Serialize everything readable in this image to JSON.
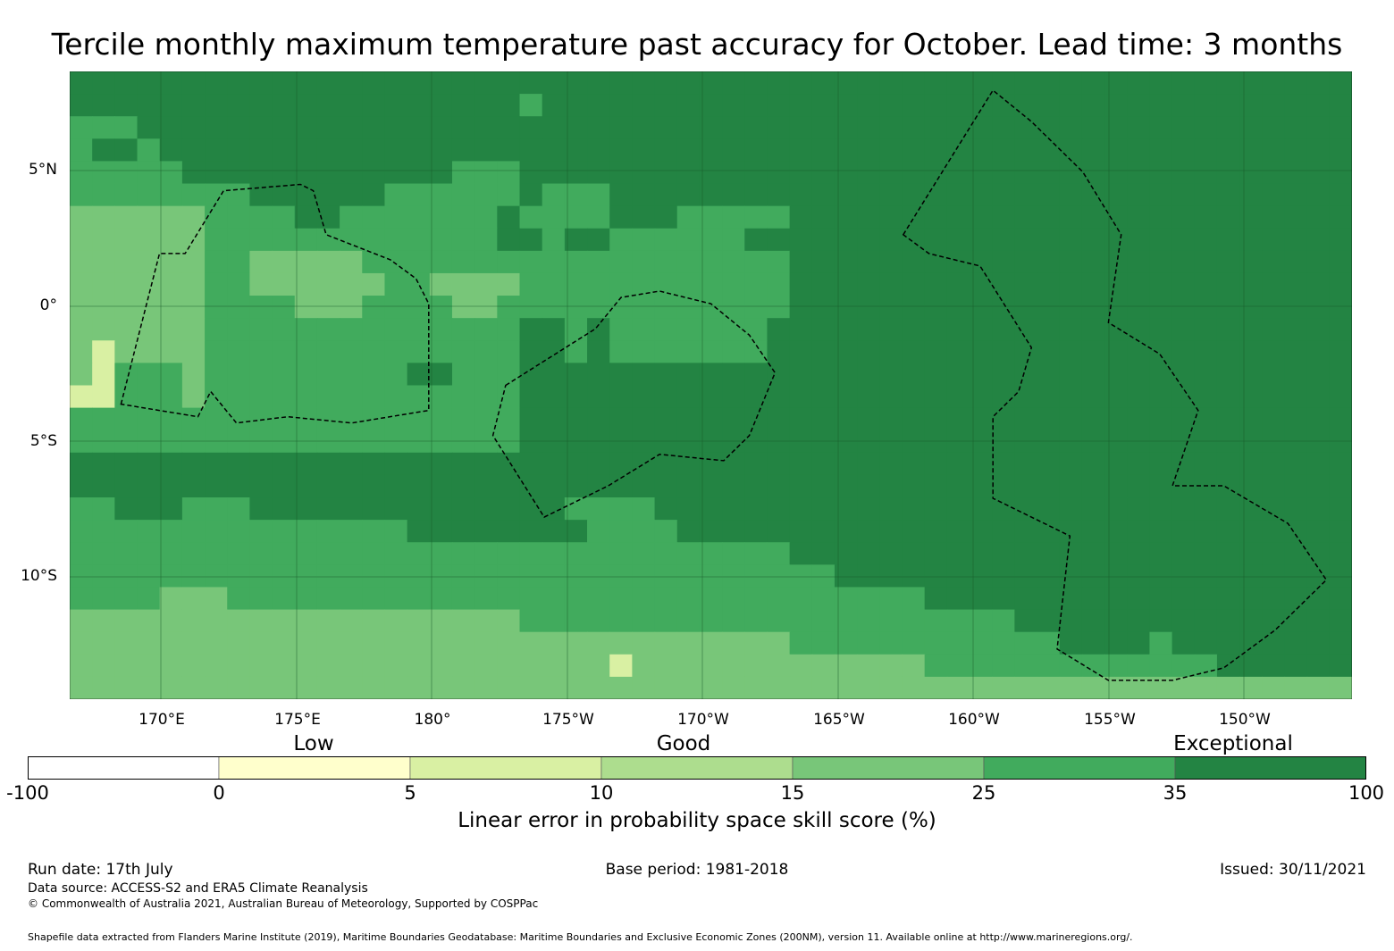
{
  "title": "Tercile monthly maximum temperature past accuracy for October. Lead time: 3 months",
  "map": {
    "lat_labels": [
      "5°N",
      "0°",
      "5°S",
      "10°S"
    ],
    "lon_labels": [
      "170°E",
      "175°E",
      "180°",
      "175°W",
      "170°W",
      "165°W",
      "160°W",
      "155°W",
      "150°W"
    ],
    "grid_cols": 57,
    "grid_rows": 28,
    "grid_rows_data": [
      "DDDDDDDDDDDDDDDDDDDDDDDDDDDDDDDDDDDDDDDDDDDDDDDDDDDDDDDDD",
      "DDDDDDDDDDDDDDDDDDDDCDDDDDDDDDDDDDDDDDDDDDDDDDDDDDDDDDDDD",
      "CCCDDDDDDDDDDDDDDDDDDDDDDDDDDDDDDDDDDDDDDDDDDDDDDDDDDDDDD",
      "CDDCDDDDDDDDDDDDDDDDDDDDDDDDDDDDDDDDDDDDDDDDDDDDDDDDDDDDD",
      "CCCCCDDDDDDDDDDDDCCCDDDDDDDDDDDDDDDDDDDDDDDDDDDDDDDDDDDDD",
      "CCCCCCCCDDDDDDCCCCCCDCCCDDDDDDDDDDDDDDDDDDDDDDDDDDDDDDDDD",
      "BBBBBBCCCCDDCCCCCCCDCCCCDDDCCCCCDDDDDDDDDDDDDDDDDDDDDDDDD",
      "BBBBBBCCCCCCCCCCCCCDDCDDCCCCCCDDDDDDDDDDDDDDDDDDDDDDDDDDD",
      "BBBBBBCCBBBBBCCCCCCCCCCCCCCCCCCCDDDDDDDDDDDDDDDDDDDDDDDDD",
      "BBBBBBCCBBBBBBCCBBBBCCCCCCCCCCCCDDDDDDDDDDDDDDDDDDDDDDDDD",
      "BBBBBBCCCCBBBCCCCBBCCCCCCCCCCCCCDDDDDDDDDDDDDDDDDDDDDDDDD",
      "BBBBBBCCCCCCCCCCCCCCDDCDCCCCCCCDDDDDDDDDDDDDDDDDDDDDDDDDD",
      "BABBBBCCCCCCCCCCCCCCDDCDCCCCCCCDDDDDDDDDDDDDDDDDDDDDDDDDD",
      "BACCCBCCCCCCCCCDDCCCDDDDDDDDDDDDDDDDDDDDDDDDDDDDDDDDDDDDD",
      "AACCCBCCCCCCCCCCCCCCDDDDDDDDDDDDDDDDDDDDDDDDDDDDDDDDDDDDD",
      "CCCCCCCCCCCCCCCCCCCCDDDDDDDDDDDDDDDDDDDDDDDDDDDDDDDDDDDDD",
      "CCCCCCCCCCCCCCCCCCCCDDDDDDDDDDDDDDDDDDDDDDDDDDDDDDDDDDDDD",
      "DDDDDDDDDDDDDDDDDDDDDDDDDDDDDDDDDDDDDDDDDDDDDDDDDDDDDDDDD",
      "DDDDDDDDDDDDDDDDDDDDDDDDDDDDDDDDDDDDDDDDDDDDDDDDDDDDDDDDD",
      "CCDDDCCCDDDDDDDDDDDDDDCCCCDDDDDDDDDDDDDDDDDDDDDDDDDDDDDDD",
      "CCCCCCCCCCCCCCCDDDDDDDDCCCCDDDDDDDDDDDDDDDDDDDDDDDDDDDDDD",
      "CCCCCCCCCCCCCCCCCCCCCCCCCCCCCCCCDDDDDDDDDDDDDDDDDDDDDDDDD",
      "CCCCCCCCCCCCCCCCCCCCCCCCCCCCCCCCCCDDDDDDDDDDDDDDDDDDDDDDD",
      "CCCCBBBCCCCCCCCCCCCCCCCCCCCCCCCCCCCCCCDDDDDDDDDDDDDDDDDDD",
      "BBBBBBBBBBBBBBBBBBBBCCCCCCCCCCCCCCCCCCCCCCDDDDDDDDDDDDDDD",
      "BBBBBBBBBBBBBBBBBBBBBBBBBBBBBBBBCCCCCCCCCCCCDDDDCDDDDDDDD",
      "BBBBBBBBBBBBBBBBBBBBBBBBABBBBBBBBBBBBBCCCCCCCCCCCCCDDDDDD",
      "BBBBBBBBBBBBBBBBBBBBBBBBBBBBBBBBBBBBBBBBBBBBBBBBBBBBBBBBB"
    ],
    "eez_boundaries": [
      [
        [
          0.04,
          0.53
        ],
        [
          0.07,
          0.29
        ],
        [
          0.09,
          0.29
        ],
        [
          0.12,
          0.19
        ],
        [
          0.18,
          0.18
        ],
        [
          0.19,
          0.19
        ],
        [
          0.2,
          0.26
        ],
        [
          0.25,
          0.3
        ],
        [
          0.27,
          0.33
        ],
        [
          0.28,
          0.37
        ],
        [
          0.28,
          0.54
        ],
        [
          0.22,
          0.56
        ],
        [
          0.17,
          0.55
        ],
        [
          0.13,
          0.56
        ],
        [
          0.11,
          0.51
        ],
        [
          0.1,
          0.55
        ],
        [
          0.04,
          0.53
        ]
      ],
      [
        [
          0.34,
          0.5
        ],
        [
          0.41,
          0.41
        ],
        [
          0.43,
          0.36
        ],
        [
          0.46,
          0.35
        ],
        [
          0.5,
          0.37
        ],
        [
          0.53,
          0.42
        ],
        [
          0.55,
          0.48
        ],
        [
          0.53,
          0.58
        ],
        [
          0.51,
          0.62
        ],
        [
          0.46,
          0.61
        ],
        [
          0.42,
          0.66
        ],
        [
          0.37,
          0.71
        ],
        [
          0.33,
          0.58
        ],
        [
          0.34,
          0.5
        ]
      ],
      [
        [
          0.65,
          0.26
        ],
        [
          0.72,
          0.03
        ],
        [
          0.75,
          0.08
        ],
        [
          0.79,
          0.16
        ],
        [
          0.82,
          0.26
        ],
        [
          0.81,
          0.4
        ],
        [
          0.85,
          0.45
        ],
        [
          0.88,
          0.54
        ],
        [
          0.86,
          0.66
        ],
        [
          0.9,
          0.66
        ],
        [
          0.95,
          0.72
        ],
        [
          0.98,
          0.81
        ],
        [
          0.94,
          0.89
        ],
        [
          0.9,
          0.95
        ],
        [
          0.86,
          0.97
        ],
        [
          0.81,
          0.97
        ],
        [
          0.77,
          0.92
        ],
        [
          0.78,
          0.74
        ],
        [
          0.72,
          0.68
        ],
        [
          0.72,
          0.55
        ],
        [
          0.74,
          0.51
        ],
        [
          0.75,
          0.44
        ],
        [
          0.71,
          0.31
        ],
        [
          0.67,
          0.29
        ],
        [
          0.65,
          0.26
        ]
      ]
    ]
  },
  "colorbar": {
    "categories": [
      "Low",
      "Good",
      "Exceptional"
    ],
    "ticks": [
      "-100",
      "0",
      "5",
      "10",
      "15",
      "25",
      "35",
      "100"
    ],
    "colors": [
      "#ffffff",
      "#ffffcc",
      "#d9f0a3",
      "#addd8e",
      "#78c679",
      "#41ab5d",
      "#238443"
    ],
    "label": "Linear error in probability space skill score (%)"
  },
  "legend_key": {
    "A": "#d9f0a3",
    "B": "#78c679",
    "C": "#41ab5d",
    "D": "#238443"
  },
  "footer": {
    "run_date": "Run date: 17th July",
    "base_period": "Base period: 1981-2018",
    "issued": "Issued: 30/11/2021",
    "data_source": "Data source: ACCESS-S2 and ERA5 Climate Reanalysis",
    "copyright": "© Commonwealth of Australia 2021, Australian Bureau of Meteorology, Supported by COSPPac",
    "shapefile": "Shapefile data extracted from Flanders Marine Institute (2019), Maritime Boundaries Geodatabase: Maritime Boundaries and Exclusive Economic Zones (200NM), version 11. Available online at http://www.marineregions.org/."
  }
}
